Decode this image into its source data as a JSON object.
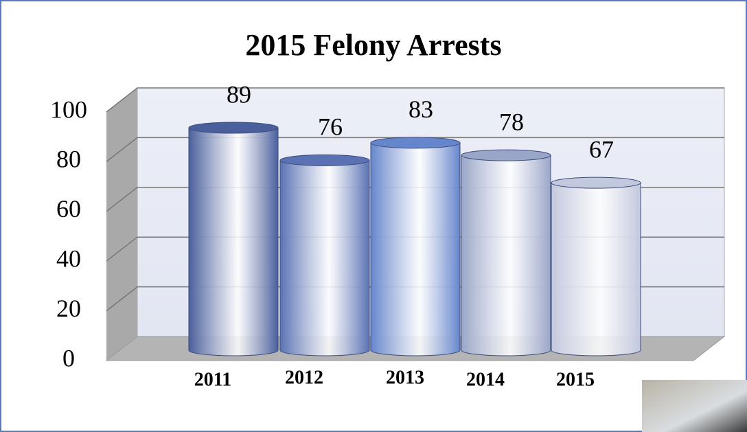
{
  "chart_data": {
    "type": "bar",
    "title": "2015 Felony Arrests",
    "categories": [
      "2011",
      "2012",
      "2013",
      "2014",
      "2015"
    ],
    "values": [
      89,
      76,
      83,
      78,
      67
    ],
    "colors": [
      "#4a5f9c",
      "#5a72b4",
      "#6585cc",
      "#9aa6c8",
      "#c2c8de"
    ],
    "ylim": [
      0,
      100
    ],
    "yticks": [
      0,
      20,
      40,
      60,
      80,
      100
    ],
    "grid": true
  }
}
